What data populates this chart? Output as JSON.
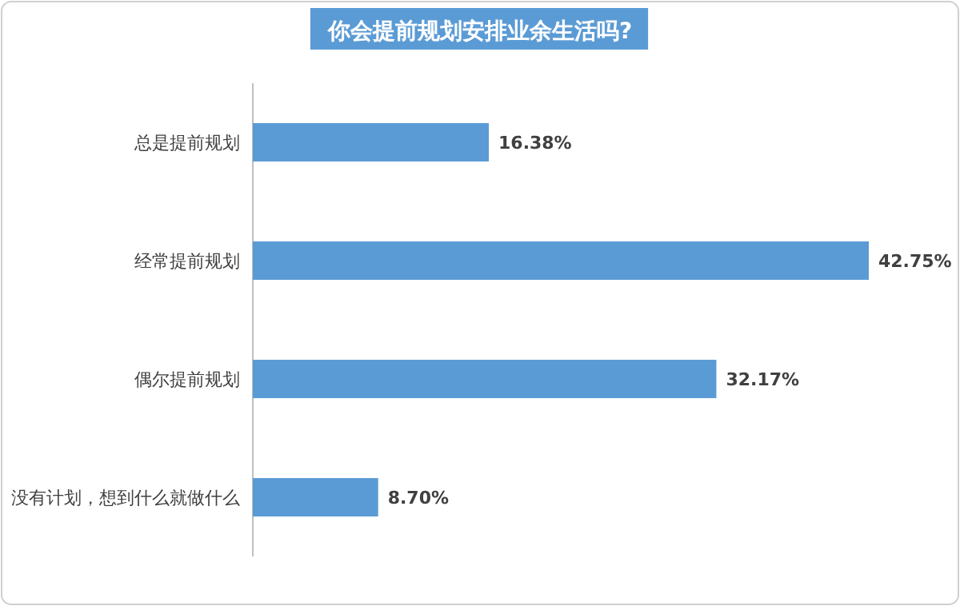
{
  "chart_data": {
    "type": "bar",
    "orientation": "horizontal",
    "title": "你会提前规划安排业余生活吗?",
    "categories": [
      "总是提前规划",
      "经常提前规划",
      "偶尔提前规划",
      "没有计划，想到什么就做什么"
    ],
    "values": [
      16.38,
      42.75,
      32.17,
      8.7
    ],
    "value_labels": [
      "16.38%",
      "42.75%",
      "32.17%",
      "8.70%"
    ],
    "color": "#5b9bd5"
  }
}
